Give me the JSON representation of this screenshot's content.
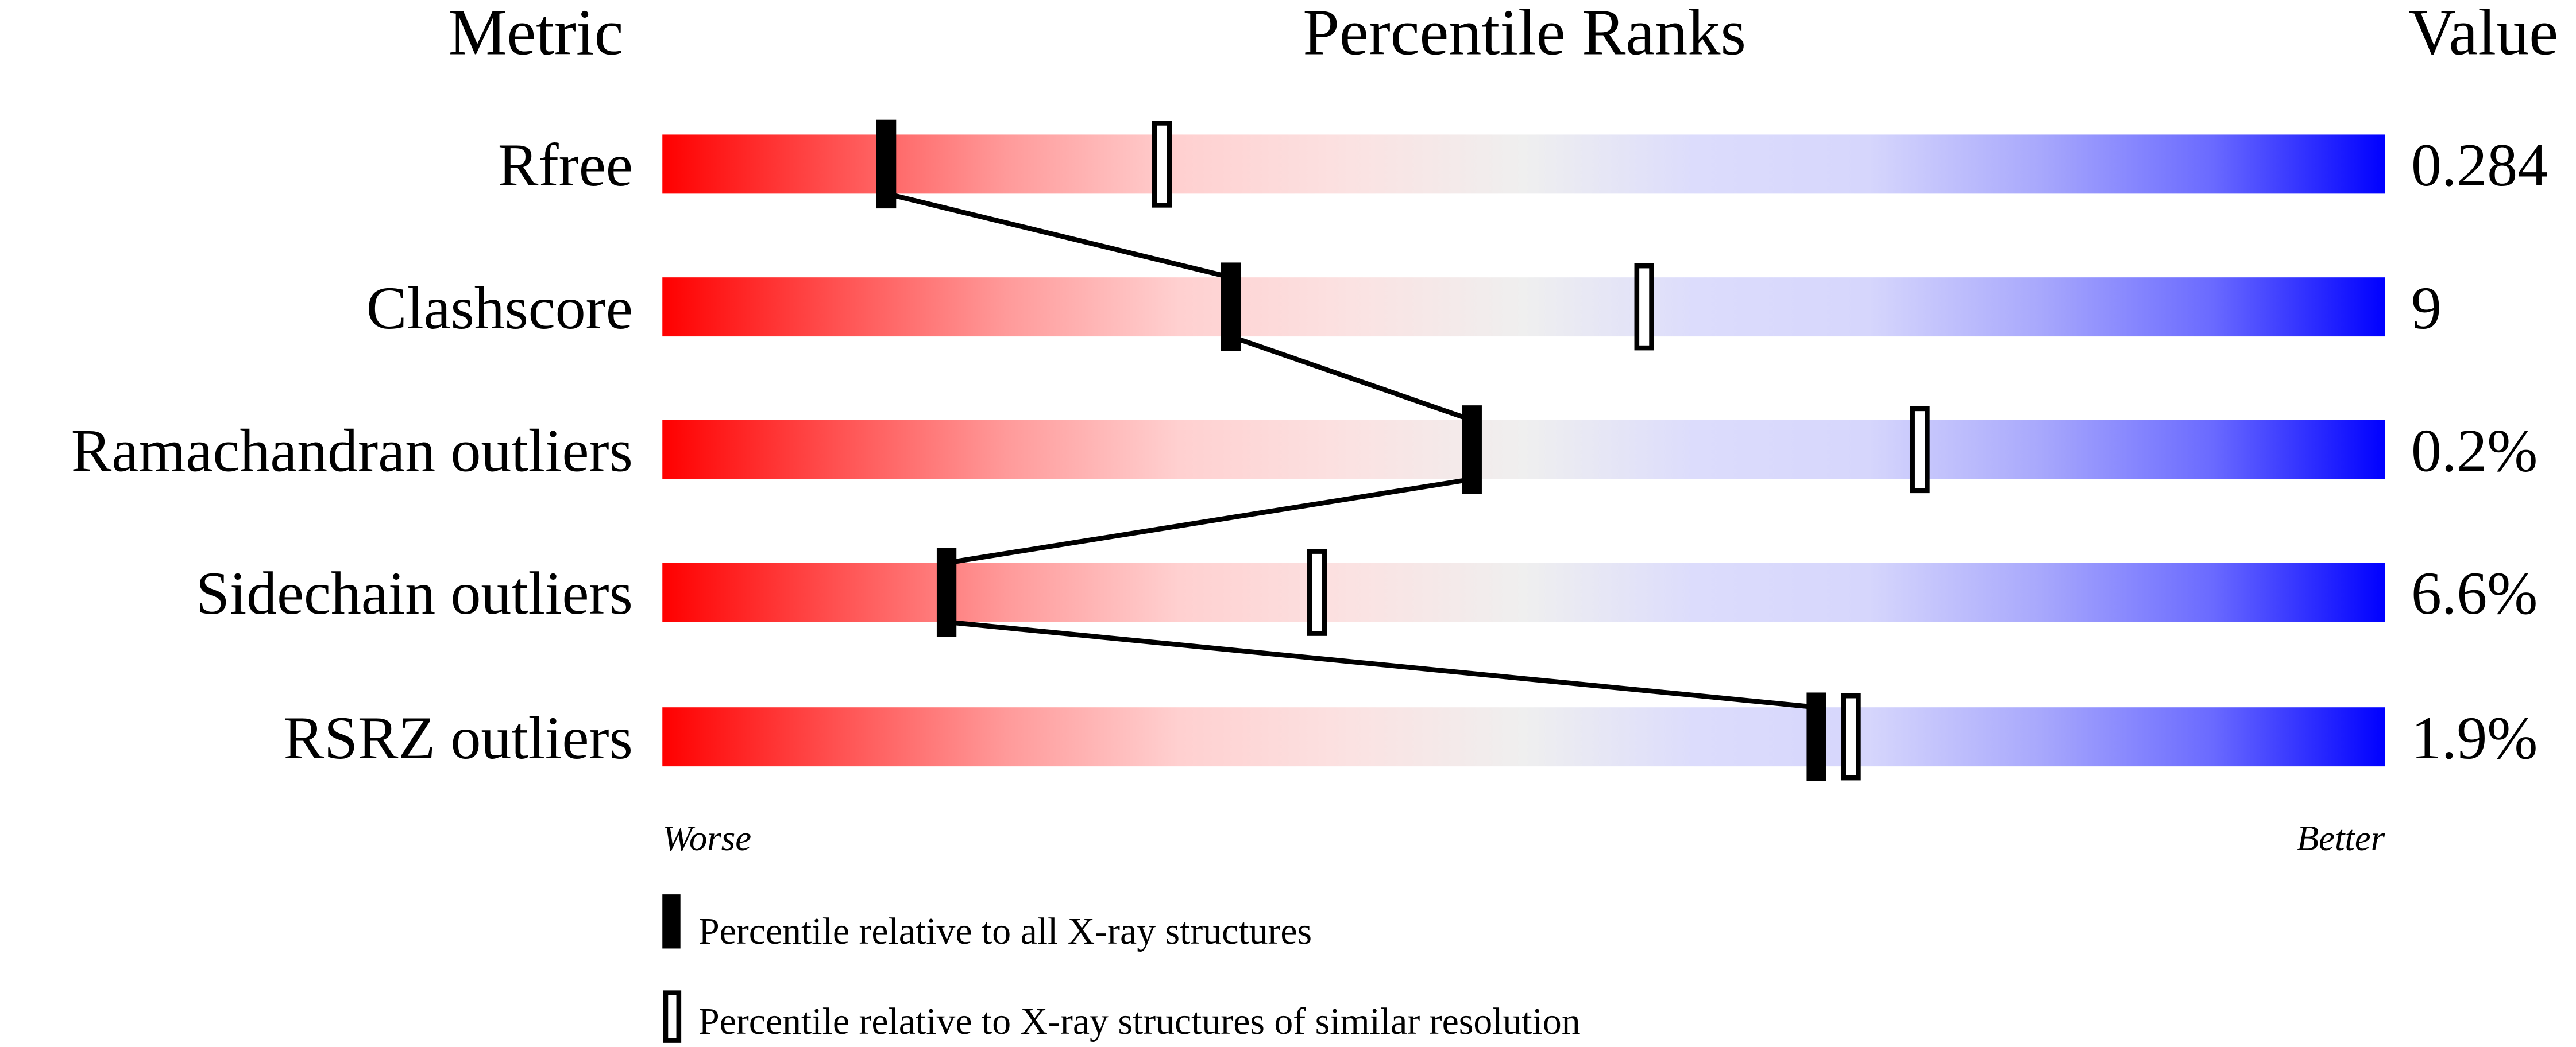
{
  "chart_data": {
    "type": "bar",
    "headers": {
      "metric": "Metric",
      "ranks": "Percentile Ranks",
      "value": "Value"
    },
    "xlim": [
      0,
      100
    ],
    "metrics": [
      {
        "name": "Rfree",
        "value": "0.284",
        "percentile_all": 13,
        "percentile_similar": 29
      },
      {
        "name": "Clashscore",
        "value": "9",
        "percentile_all": 33,
        "percentile_similar": 57
      },
      {
        "name": "Ramachandran outliers",
        "value": "0.2%",
        "percentile_all": 47,
        "percentile_similar": 73
      },
      {
        "name": "Sidechain outliers",
        "value": "6.6%",
        "percentile_all": 16.5,
        "percentile_similar": 38
      },
      {
        "name": "RSRZ outliers",
        "value": "1.9%",
        "percentile_all": 67,
        "percentile_similar": 69
      }
    ],
    "axis": {
      "worse": "Worse",
      "better": "Better"
    },
    "legend": {
      "all": "Percentile relative to all X-ray structures",
      "similar": "Percentile relative to X-ray structures of similar resolution"
    },
    "colors": {
      "worse": "#ff0000",
      "middle": "#f0f0f0",
      "better": "#0000ff",
      "marker": "#000000"
    }
  }
}
